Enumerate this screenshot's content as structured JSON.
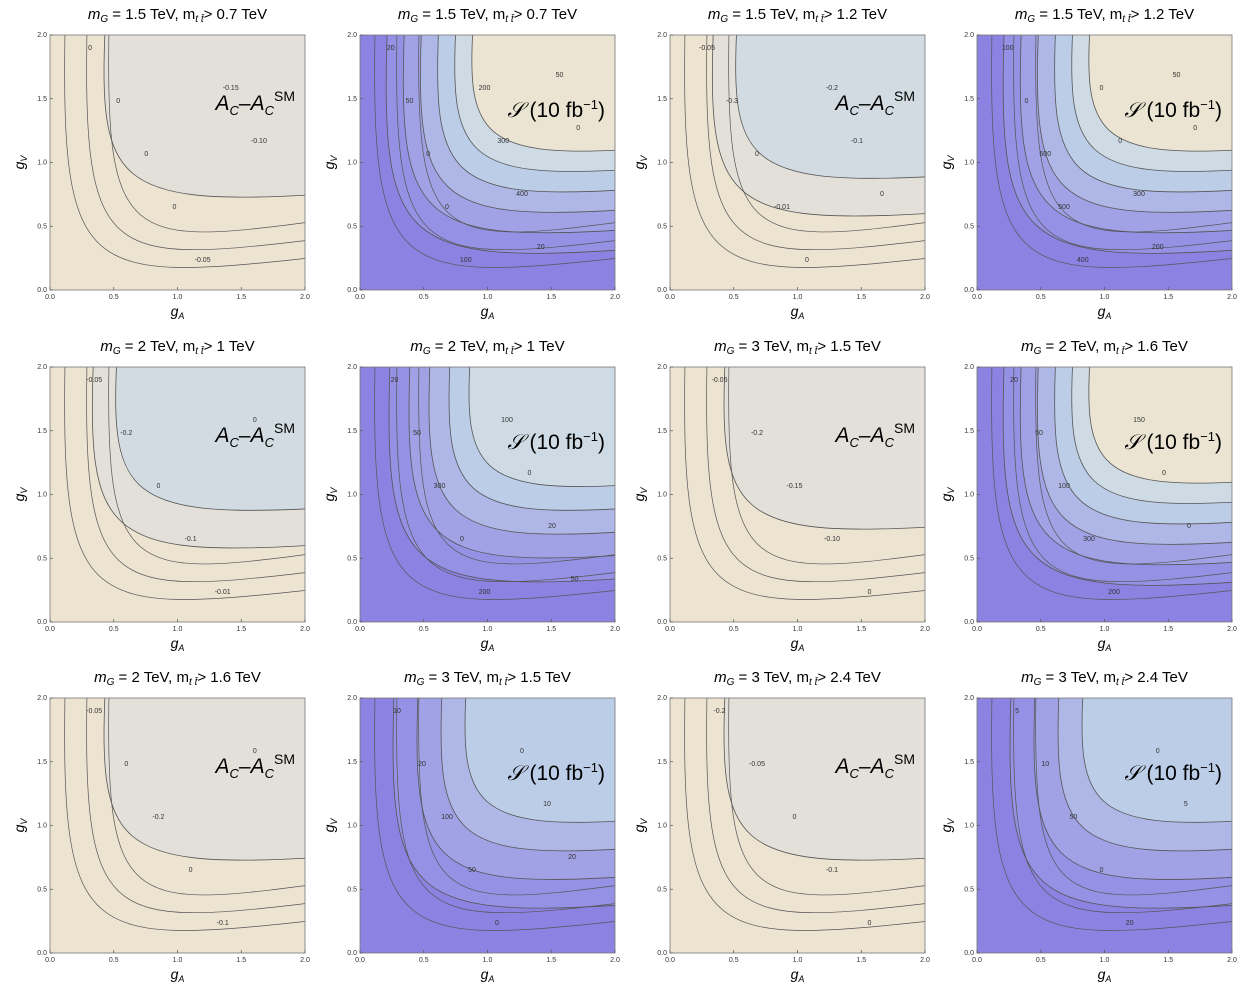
{
  "figure": {
    "panels": [
      {
        "title": {
          "pre": "m",
          "sub1": "G",
          "mid": " = 1.5 TeV, m",
          "sub2": "t t̄",
          "post": "> 0.7 TeV"
        },
        "quantity": "asym",
        "label": {
          "a": "A",
          "sub": "C",
          "dash": "–",
          "b": "A",
          "sup": "SM"
        },
        "contour_labels": [
          "0",
          "0",
          "0",
          "0",
          "-0.05",
          "-0.15",
          "-0.10"
        ],
        "shade_levels": 2
      },
      {
        "title": {
          "pre": "m",
          "sub1": "G",
          "mid": " = 1.5 TeV, m",
          "sub2": "t t̄",
          "post": "> 0.7 TeV"
        },
        "quantity": "signif",
        "label": {
          "s": "𝒮",
          "paren": " (10 fb",
          "sup": "−1",
          "close": ")"
        },
        "contour_labels": [
          "20",
          "50",
          "0",
          "0",
          "100",
          "200",
          "300",
          "400",
          "20",
          "50",
          "0"
        ],
        "shade_levels": 7
      },
      {
        "title": {
          "pre": "m",
          "sub1": "G",
          "mid": " = 1.5 TeV, m",
          "sub2": "t t̄",
          "post": "> 1.2 TeV"
        },
        "quantity": "asym",
        "label": {
          "a": "A",
          "sub": "C",
          "dash": "–",
          "b": "A",
          "sup": "SM"
        },
        "contour_labels": [
          "-0.05",
          "-0.3",
          "0",
          "-0.01",
          "0",
          "-0.2",
          "-0.1",
          "0"
        ],
        "shade_levels": 3
      },
      {
        "title": {
          "pre": "m",
          "sub1": "G",
          "mid": " = 1.5 TeV, m",
          "sub2": "t t̄",
          "post": "> 1.2 TeV"
        },
        "quantity": "signif",
        "label": {
          "s": "𝒮",
          "paren": " (10 fb",
          "sup": "−1",
          "close": ")"
        },
        "contour_labels": [
          "100",
          "0",
          "600",
          "500",
          "400",
          "0",
          "0",
          "300",
          "200",
          "50",
          "0"
        ],
        "shade_levels": 7
      },
      {
        "title": {
          "pre": "m",
          "sub1": "G",
          "mid": " = 2 TeV, m",
          "sub2": "t t̄",
          "post": "> 1 TeV"
        },
        "quantity": "asym",
        "label": {
          "a": "A",
          "sub": "C",
          "dash": "–",
          "b": "A",
          "sup": "SM"
        },
        "contour_labels": [
          "-0.05",
          "-0.2",
          "0",
          "-0.1",
          "-0.01",
          "0"
        ],
        "shade_levels": 3
      },
      {
        "title": {
          "pre": "m",
          "sub1": "G",
          "mid": " = 2 TeV, m",
          "sub2": "t t̄",
          "post": "> 1 TeV"
        },
        "quantity": "signif",
        "label": {
          "s": "𝒮",
          "paren": " (10 fb",
          "sup": "−1",
          "close": ")"
        },
        "contour_labels": [
          "20",
          "50",
          "300",
          "0",
          "200",
          "100",
          "0",
          "20",
          "50"
        ],
        "shade_levels": 6
      },
      {
        "title": {
          "pre": "m",
          "sub1": "G",
          "mid": " = 3 TeV, m",
          "sub2": "t t̄",
          "post": "> 1.5 TeV"
        },
        "quantity": "asym",
        "label": {
          "a": "A",
          "sub": "C",
          "dash": "–",
          "b": "A",
          "sup": "SM"
        },
        "contour_labels": [
          "-0.05",
          "-0.2",
          "-0.15",
          "-0.10",
          "0"
        ],
        "shade_levels": 2
      },
      {
        "title": {
          "pre": "m",
          "sub1": "G",
          "mid": " = 2 TeV, m",
          "sub2": "t t̄",
          "post": "> 1.6 TeV"
        },
        "quantity": "signif",
        "label": {
          "s": "𝒮",
          "paren": " (10 fb",
          "sup": "−1",
          "close": ")"
        },
        "contour_labels": [
          "20",
          "50",
          "100",
          "300",
          "200",
          "150",
          "0",
          "0"
        ],
        "shade_levels": 7
      },
      {
        "title": {
          "pre": "m",
          "sub1": "G",
          "mid": " = 2 TeV, m",
          "sub2": "t t̄",
          "post": "> 1.6 TeV"
        },
        "quantity": "asym",
        "label": {
          "a": "A",
          "sub": "C",
          "dash": "–",
          "b": "A",
          "sup": "SM"
        },
        "contour_labels": [
          "-0.05",
          "0",
          "-0.2",
          "0",
          "-0.1",
          "0"
        ],
        "shade_levels": 2
      },
      {
        "title": {
          "pre": "m",
          "sub1": "G",
          "mid": " = 3 TeV, m",
          "sub2": "t t̄",
          "post": "> 1.5 TeV"
        },
        "quantity": "signif",
        "label": {
          "s": "𝒮",
          "paren": " (10 fb",
          "sup": "−1",
          "close": ")"
        },
        "contour_labels": [
          "10",
          "20",
          "100",
          "50",
          "0",
          "0",
          "10",
          "20"
        ],
        "shade_levels": 5
      },
      {
        "title": {
          "pre": "m",
          "sub1": "G",
          "mid": " = 3 TeV, m",
          "sub2": "t t̄",
          "post": "> 2.4 TeV"
        },
        "quantity": "asym",
        "label": {
          "a": "A",
          "sub": "C",
          "dash": "–",
          "b": "A",
          "sup": "SM"
        },
        "contour_labels": [
          "-0.2",
          "-0.05",
          "0",
          "-0.1",
          "0"
        ],
        "shade_levels": 2
      },
      {
        "title": {
          "pre": "m",
          "sub1": "G",
          "mid": " = 3 TeV, m",
          "sub2": "t t̄",
          "post": "> 2.4 TeV"
        },
        "quantity": "signif",
        "label": {
          "s": "𝒮",
          "paren": " (10 fb",
          "sup": "−1",
          "close": ")"
        },
        "contour_labels": [
          "5",
          "10",
          "50",
          "0",
          "20",
          "0",
          "5"
        ],
        "shade_levels": 5
      }
    ]
  },
  "chart_data": {
    "type": "heatmap",
    "xlabel": "g_A",
    "ylabel": "g_V",
    "xlim": [
      0,
      2.0
    ],
    "ylim": [
      0,
      2.0
    ],
    "x_ticks": [
      "0.0",
      "0.5",
      "1.0",
      "1.5",
      "2.0"
    ],
    "y_ticks": [
      "0.0",
      "0.5",
      "1.0",
      "1.5",
      "2.0"
    ],
    "colors": {
      "asym_levels": [
        "#ece3d1",
        "#e2e0d8",
        "#d1dbe1",
        "#8c89e2"
      ],
      "signif_levels": [
        "#8c82e2",
        "#9591e5",
        "#a0a2e5",
        "#aeb7e6",
        "#bccde8",
        "#cedbe4",
        "#ebe4d2"
      ],
      "contour_line": "#555555"
    }
  }
}
